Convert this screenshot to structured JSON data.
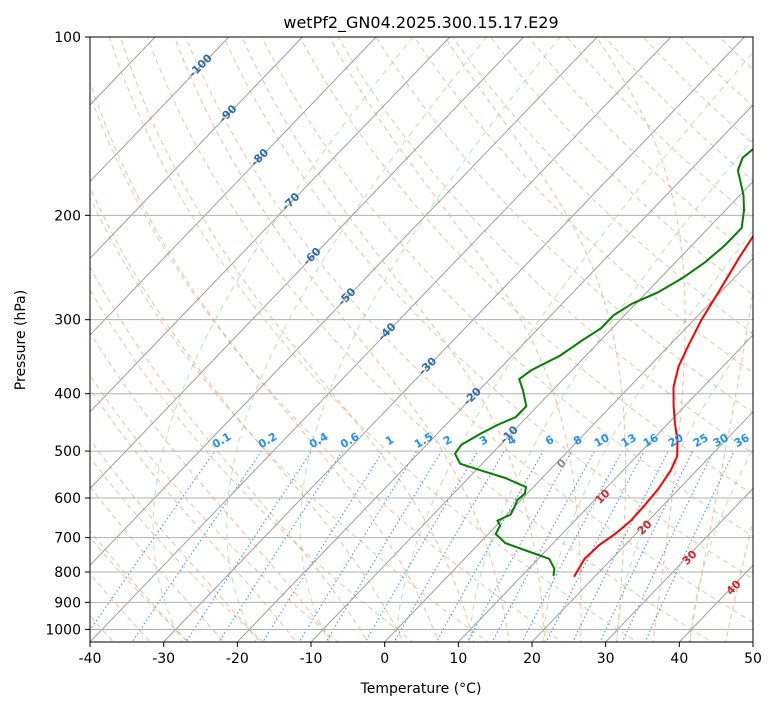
{
  "chart_data": {
    "type": "line",
    "title": "wetPf2_GN04.2025.300.15.17.E29",
    "xlabel": "Temperature (°C)",
    "ylabel": "Pressure (hPa)",
    "xlim": [
      -40,
      50
    ],
    "ylim": [
      1050,
      100
    ],
    "y_scale": "log",
    "x_ticks": [
      -40,
      -30,
      -20,
      -10,
      0,
      10,
      20,
      30,
      40,
      50
    ],
    "y_ticks": [
      100,
      200,
      300,
      400,
      500,
      600,
      700,
      800,
      900,
      1000
    ],
    "grid": true,
    "skew": "skew-T log-p",
    "series": [
      {
        "color": "#ff0000",
        "points": [
          [
            17.2,
            815
          ],
          [
            16.8,
            790
          ],
          [
            16.3,
            760
          ],
          [
            16.5,
            720
          ],
          [
            17.2,
            690
          ],
          [
            17.6,
            655
          ],
          [
            17.5,
            620
          ],
          [
            17.2,
            580
          ],
          [
            16.5,
            540
          ],
          [
            15.5,
            510
          ],
          [
            13.5,
            480
          ],
          [
            11,
            450
          ],
          [
            8.5,
            420
          ],
          [
            6,
            390
          ],
          [
            4,
            360
          ],
          [
            2.5,
            330
          ],
          [
            1,
            300
          ],
          [
            -0.5,
            265
          ],
          [
            -2,
            235
          ],
          [
            -3.2,
            210
          ],
          [
            -3.3,
            200
          ],
          [
            -2,
            190
          ],
          [
            0,
            175
          ],
          [
            1.5,
            160
          ],
          [
            2.5,
            145
          ],
          [
            4.2,
            130
          ],
          [
            7,
            120
          ],
          [
            10,
            112
          ],
          [
            13,
            105
          ],
          [
            15.5,
            100
          ]
        ]
      },
      {
        "color": "#008000",
        "points": [
          [
            14.3,
            812
          ],
          [
            13.5,
            790
          ],
          [
            11.5,
            760
          ],
          [
            8,
            740
          ],
          [
            3.5,
            715
          ],
          [
            1,
            690
          ],
          [
            0.5,
            668
          ],
          [
            -0.5,
            655
          ],
          [
            0.5,
            640
          ],
          [
            0,
            620
          ],
          [
            -0.5,
            605
          ],
          [
            -0.3,
            590
          ],
          [
            -1,
            575
          ],
          [
            -5,
            555
          ],
          [
            -9,
            540
          ],
          [
            -13,
            525
          ],
          [
            -15,
            505
          ],
          [
            -15.3,
            488
          ],
          [
            -14.2,
            468
          ],
          [
            -13,
            452
          ],
          [
            -11.5,
            438
          ],
          [
            -11.5,
            420
          ],
          [
            -14,
            395
          ],
          [
            -16,
            378
          ],
          [
            -15.5,
            365
          ],
          [
            -13.5,
            345
          ],
          [
            -12.5,
            325
          ],
          [
            -11.5,
            310
          ],
          [
            -11.5,
            295
          ],
          [
            -10.5,
            282
          ],
          [
            -8.5,
            270
          ],
          [
            -7,
            255
          ],
          [
            -6,
            240
          ],
          [
            -5.5,
            225
          ],
          [
            -5.5,
            210
          ],
          [
            -7.5,
            196
          ],
          [
            -9.5,
            185
          ],
          [
            -13.5,
            168
          ],
          [
            -14.5,
            160
          ],
          [
            -14,
            150
          ],
          [
            -12.5,
            138
          ],
          [
            -11.5,
            122
          ],
          [
            -10.2,
            110
          ],
          [
            -9,
            100
          ]
        ]
      }
    ],
    "dry_adiabat_labels": [
      "-100",
      "-90",
      "-80",
      "-70",
      "-60",
      "-50",
      "-40",
      "-30",
      "-20",
      "-10"
    ],
    "mixing_ratio_labels": [
      "0.1",
      "0.2",
      "0.4",
      "0.6",
      "1",
      "1.5",
      "2",
      "3",
      "4",
      "6",
      "8",
      "10",
      "13",
      "16",
      "20",
      "25",
      "30",
      "36"
    ],
    "moist_adiabat_labels": [
      "0",
      "10",
      "20",
      "30",
      "40"
    ]
  }
}
